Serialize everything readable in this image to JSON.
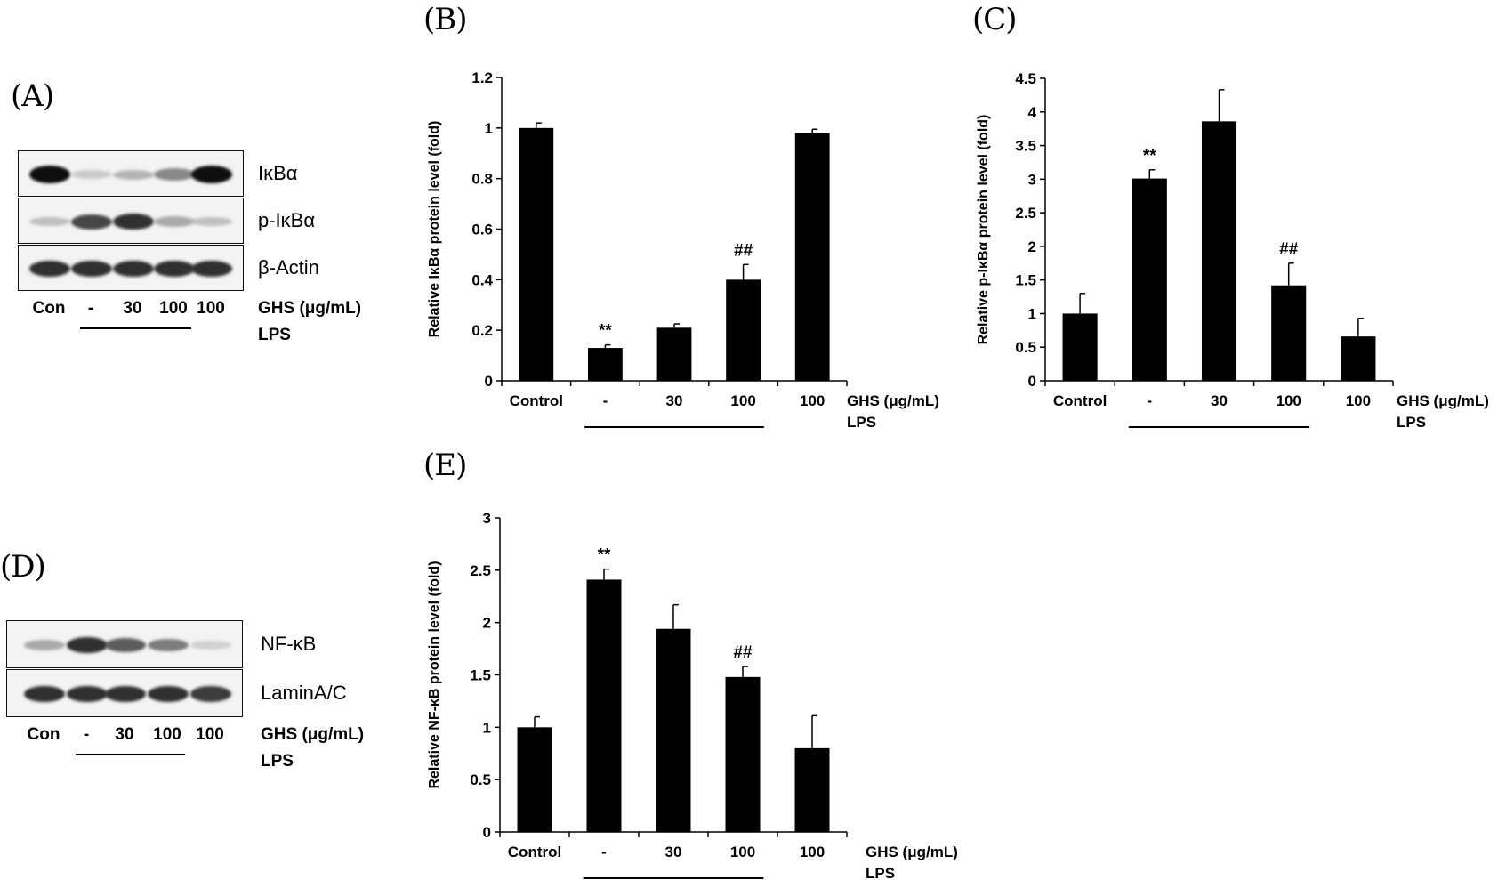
{
  "panels": {
    "A": "(A)",
    "B": "(B)",
    "C": "(C)",
    "D": "(D)",
    "E": "(E)"
  },
  "blot_a": {
    "proteins": [
      "IκBα",
      "p-IκBα",
      "β-Actin"
    ],
    "lanes": [
      "Con",
      "-",
      "30",
      "100",
      "100"
    ],
    "condition": "GHS (μg/mL)",
    "lps": "LPS",
    "band_intensity": [
      [
        1.0,
        0.15,
        0.25,
        0.45,
        1.0
      ],
      [
        0.2,
        0.75,
        0.85,
        0.3,
        0.2
      ],
      [
        0.85,
        0.85,
        0.85,
        0.85,
        0.85
      ]
    ]
  },
  "blot_d": {
    "proteins": [
      "NF-κB",
      "LaminA/C"
    ],
    "lanes": [
      "Con",
      "-",
      "30",
      "100",
      "100"
    ],
    "condition": "GHS (μg/mL)",
    "lps": "LPS",
    "band_intensity": [
      [
        0.3,
        0.85,
        0.65,
        0.5,
        0.12
      ],
      [
        0.85,
        0.85,
        0.85,
        0.85,
        0.8
      ]
    ]
  },
  "chart_data": [
    {
      "id": "B",
      "type": "bar",
      "categories": [
        "Control",
        "-",
        "30",
        "100",
        "100"
      ],
      "values": [
        1.0,
        0.13,
        0.21,
        0.4,
        0.98
      ],
      "errors": [
        0.02,
        0.012,
        0.015,
        0.06,
        0.015
      ],
      "annotations": [
        "",
        "**",
        "",
        "##",
        ""
      ],
      "ylabel": "Relative IκBα protein level (fold)",
      "xlabel": "",
      "ylim": [
        0,
        1.2
      ],
      "yticks": [
        0,
        0.2,
        0.4,
        0.6,
        0.8,
        1,
        1.2
      ],
      "ytick_labels": [
        "0",
        "0.2",
        "0.4",
        "0.6",
        "0.8",
        "1",
        "1.2"
      ],
      "condition": "GHS (μg/mL)",
      "lps": "LPS",
      "bar_color": "#000000"
    },
    {
      "id": "C",
      "type": "bar",
      "categories": [
        "Control",
        "-",
        "30",
        "100",
        "100"
      ],
      "values": [
        1.0,
        3.01,
        3.86,
        1.42,
        0.66
      ],
      "errors": [
        0.3,
        0.13,
        0.47,
        0.33,
        0.27
      ],
      "annotations": [
        "",
        "**",
        "",
        "##",
        ""
      ],
      "ylabel": "Relative p-IκBα protein level (fold)",
      "xlabel": "",
      "ylim": [
        0,
        4.5
      ],
      "yticks": [
        0,
        0.5,
        1,
        1.5,
        2,
        2.5,
        3,
        3.5,
        4,
        4.5
      ],
      "ytick_labels": [
        "0",
        "0.5",
        "1",
        "1.5",
        "2",
        "2.5",
        "3",
        "3.5",
        "4",
        "4.5"
      ],
      "condition": "GHS (μg/mL)",
      "lps": "LPS",
      "bar_color": "#000000"
    },
    {
      "id": "E",
      "type": "bar",
      "categories": [
        "Control",
        "-",
        "30",
        "100",
        "100"
      ],
      "values": [
        1.0,
        2.41,
        1.94,
        1.48,
        0.8
      ],
      "errors": [
        0.1,
        0.1,
        0.23,
        0.1,
        0.31
      ],
      "annotations": [
        "",
        "**",
        "",
        "##",
        ""
      ],
      "ylabel": "Relative NF-κB protein level (fold)",
      "xlabel": "",
      "ylim": [
        0,
        3
      ],
      "yticks": [
        0,
        0.5,
        1,
        1.5,
        2,
        2.5,
        3
      ],
      "ytick_labels": [
        "0",
        "0.5",
        "1",
        "1.5",
        "2",
        "2.5",
        "3"
      ],
      "condition": "GHS (μg/mL)",
      "lps": "LPS",
      "bar_color": "#000000"
    }
  ]
}
